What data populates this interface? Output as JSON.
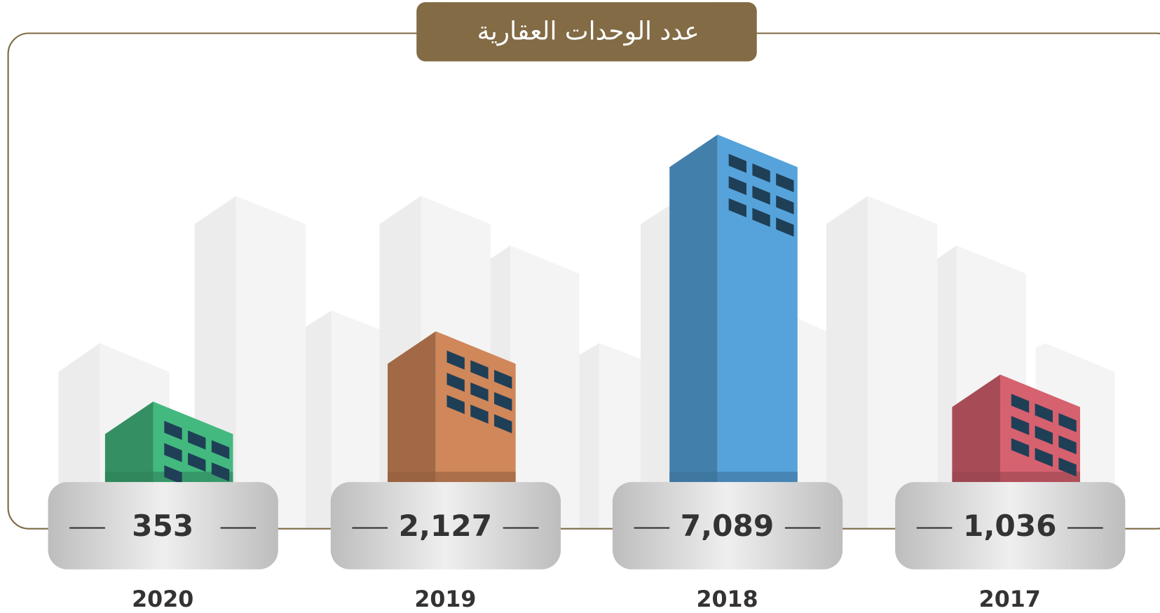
{
  "chart_data": {
    "type": "bar",
    "title": "عدد الوحدات العقارية",
    "categories": [
      "2020",
      "2019",
      "2018",
      "2017"
    ],
    "values": [
      353,
      2127,
      7089,
      1036
    ],
    "value_labels": [
      "353",
      "2,127",
      "7,089",
      "1,036"
    ],
    "colors": [
      "#43b97f",
      "#d0875a",
      "#56a3db",
      "#d6616f"
    ]
  }
}
